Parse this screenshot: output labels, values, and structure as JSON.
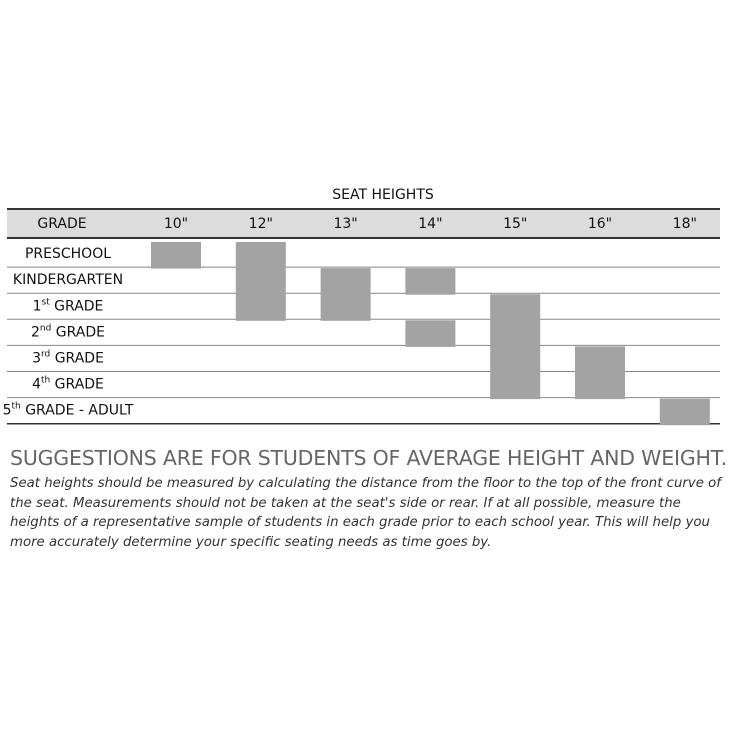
{
  "table": {
    "title": "SEAT HEIGHTS",
    "grade_header": "GRADE",
    "columns": [
      "10\"",
      "12\"",
      "13\"",
      "14\"",
      "15\"",
      "16\"",
      "18\""
    ],
    "rows": [
      {
        "grade": [
          "PRESCHOOL"
        ],
        "cells": [
          true,
          true,
          false,
          false,
          false,
          false,
          false
        ]
      },
      {
        "grade": [
          "KINDERGARTEN"
        ],
        "cells": [
          false,
          true,
          true,
          true,
          false,
          false,
          false
        ]
      },
      {
        "grade": [
          "1",
          "st",
          " GRADE"
        ],
        "cells": [
          false,
          true,
          true,
          false,
          true,
          false,
          false
        ]
      },
      {
        "grade": [
          "2",
          "nd",
          " GRADE"
        ],
        "cells": [
          false,
          false,
          false,
          true,
          true,
          false,
          false
        ]
      },
      {
        "grade": [
          "3",
          "rd",
          " GRADE"
        ],
        "cells": [
          false,
          false,
          false,
          false,
          true,
          true,
          false
        ]
      },
      {
        "grade": [
          "4",
          "th",
          " GRADE"
        ],
        "cells": [
          false,
          false,
          false,
          false,
          true,
          true,
          false
        ]
      },
      {
        "grade": [
          "5",
          "th",
          " GRADE - ADULT"
        ],
        "cells": [
          false,
          false,
          false,
          false,
          false,
          false,
          true
        ]
      }
    ]
  },
  "notes": {
    "headline": "SUGGESTIONS ARE FOR STUDENTS OF AVERAGE HEIGHT AND WEIGHT.",
    "text": "Seat heights should be measured by calculating the distance from the floor to the top of the front curve of the seat. Measurements should not be taken at the seat's side or rear.  If at all possible, measure the heights of a representative sample of students in each grade prior to each school year.  This will help you more accurately determine your specific seating needs as time goes by."
  }
}
